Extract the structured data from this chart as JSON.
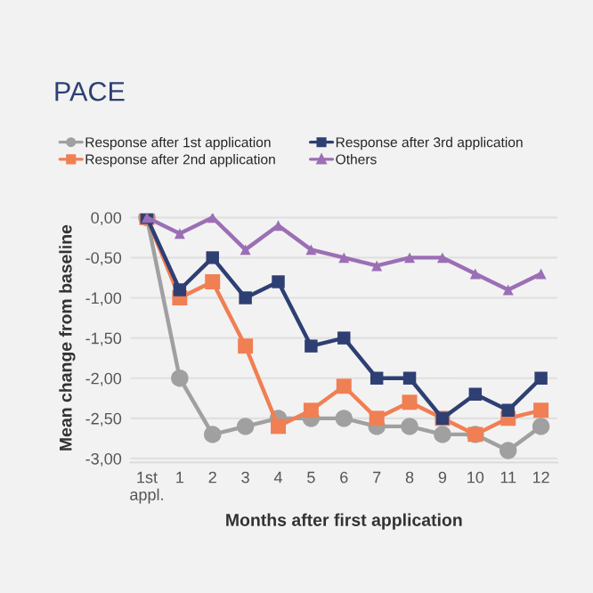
{
  "chart_data": {
    "type": "line",
    "title": "PACE",
    "xlabel": "Months after first application",
    "ylabel": "Mean change from baseline",
    "categories": [
      "1st\nappl.",
      "1",
      "2",
      "3",
      "4",
      "5",
      "6",
      "7",
      "8",
      "9",
      "10",
      "11",
      "12"
    ],
    "series": [
      {
        "name": "Response after 1st application",
        "color": "#a0a0a0",
        "marker": "circle",
        "values": [
          0,
          -2.0,
          -2.7,
          -2.6,
          -2.5,
          -2.5,
          -2.5,
          -2.6,
          -2.6,
          -2.7,
          -2.7,
          -2.9,
          -2.6
        ]
      },
      {
        "name": "Response after 2nd application",
        "color": "#f07f54",
        "marker": "square",
        "values": [
          0,
          -1.0,
          -0.8,
          -1.6,
          -2.6,
          -2.4,
          -2.1,
          -2.5,
          -2.3,
          -2.5,
          -2.7,
          -2.5,
          -2.4
        ]
      },
      {
        "name": "Response after 3rd application",
        "color": "#2e3f73",
        "marker": "square",
        "values": [
          0,
          -0.9,
          -0.5,
          -1.0,
          -0.8,
          -1.6,
          -1.5,
          -2.0,
          -2.0,
          -2.5,
          -2.2,
          -2.4,
          -2.0
        ]
      },
      {
        "name": "Others",
        "color": "#9b6fb5",
        "marker": "triangle",
        "values": [
          0,
          -0.2,
          0,
          -0.4,
          -0.1,
          -0.4,
          -0.5,
          -0.6,
          -0.5,
          -0.5,
          -0.7,
          -0.9,
          -0.7
        ]
      }
    ],
    "ylim": [
      -3.05,
      0.05
    ],
    "yticks": [
      {
        "value": 0,
        "label": "0,00"
      },
      {
        "value": -0.5,
        "label": "-0,50"
      },
      {
        "value": -1,
        "label": "-1,00"
      },
      {
        "value": -1.5,
        "label": "-1,50"
      },
      {
        "value": -2,
        "label": "-2,00"
      },
      {
        "value": -2.5,
        "label": "-2,50"
      },
      {
        "value": -3,
        "label": "-3,00"
      }
    ],
    "grid": "y",
    "legend": "top",
    "line_style": "solid"
  }
}
